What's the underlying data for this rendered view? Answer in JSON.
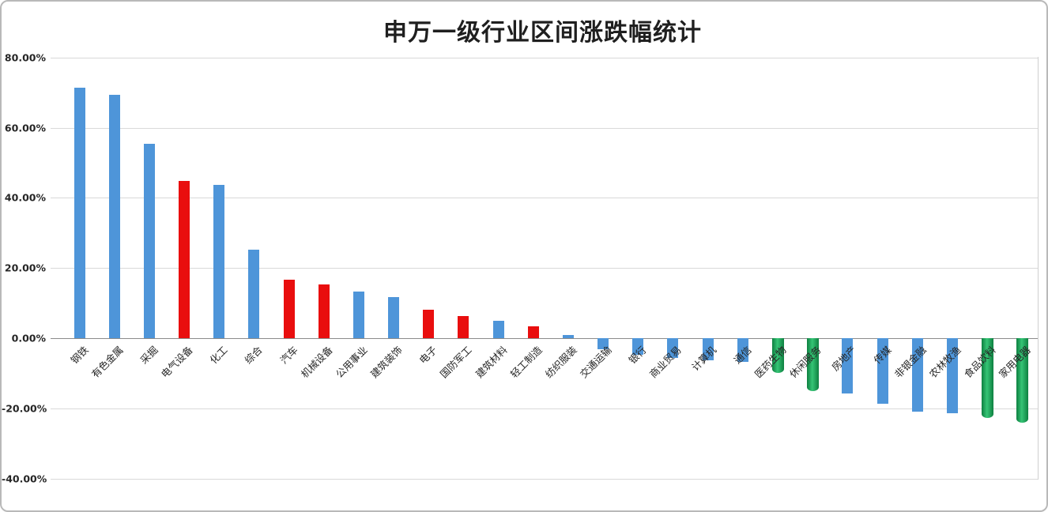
{
  "page": {
    "title": "申万一级行业区间涨跌幅统计"
  },
  "colors": {
    "bar_blue": "#4E95D9",
    "bar_red": "#E90E0E",
    "bar_green_edge": "#0E8040",
    "bar_green_center": "#35C475",
    "gridline": "#D9D9D9",
    "zero_axis": "#8C8C8C",
    "tick_text": "#262626",
    "title_text": "#1F1F1F",
    "canvas_border": "#B9B9B9"
  },
  "chart_data": {
    "type": "bar",
    "title": "申万一级行业区间涨跌幅统计",
    "xlabel": "",
    "ylabel": "",
    "ylim": [
      -40,
      80
    ],
    "grid": true,
    "legend": "none",
    "value_unit": "%",
    "yticks": [
      {
        "label": "80.00%",
        "value": 80
      },
      {
        "label": "60.00%",
        "value": 60
      },
      {
        "label": "40.00%",
        "value": 40
      },
      {
        "label": "20.00%",
        "value": 20
      },
      {
        "label": "0.00%",
        "value": 0
      },
      {
        "label": "-20.00%",
        "value": -20
      },
      {
        "label": "-40.00%",
        "value": -40
      }
    ],
    "categories": [
      "钢铁",
      "有色金属",
      "采掘",
      "电气设备",
      "化工",
      "综合",
      "汽车",
      "机械设备",
      "公用事业",
      "建筑装饰",
      "电子",
      "国防军工",
      "建筑材料",
      "轻工制造",
      "纺织服装",
      "交通运输",
      "银行",
      "商业贸易",
      "计算机",
      "通信",
      "医药生物",
      "休闲服务",
      "房地产",
      "传媒",
      "非银金融",
      "农林牧渔",
      "食品饮料",
      "家用电器"
    ],
    "series": [
      {
        "name": "区间涨跌幅",
        "values": [
          71.5,
          69.4,
          55.3,
          44.8,
          43.8,
          25.3,
          16.7,
          15.3,
          13.4,
          11.8,
          8.1,
          6.3,
          4.9,
          3.3,
          1.0,
          -3.2,
          -4.8,
          -5.7,
          -6.3,
          -6.8,
          -10.0,
          -15.0,
          -15.7,
          -18.6,
          -21.0,
          -21.5,
          -22.8,
          -24.0
        ],
        "bar_colors": [
          "blue",
          "blue",
          "blue",
          "red",
          "blue",
          "blue",
          "red",
          "red",
          "blue",
          "blue",
          "red",
          "red",
          "blue",
          "red",
          "blue",
          "blue",
          "blue",
          "blue",
          "blue",
          "blue",
          "green",
          "green",
          "blue",
          "blue",
          "blue",
          "blue",
          "green",
          "green"
        ]
      }
    ]
  }
}
